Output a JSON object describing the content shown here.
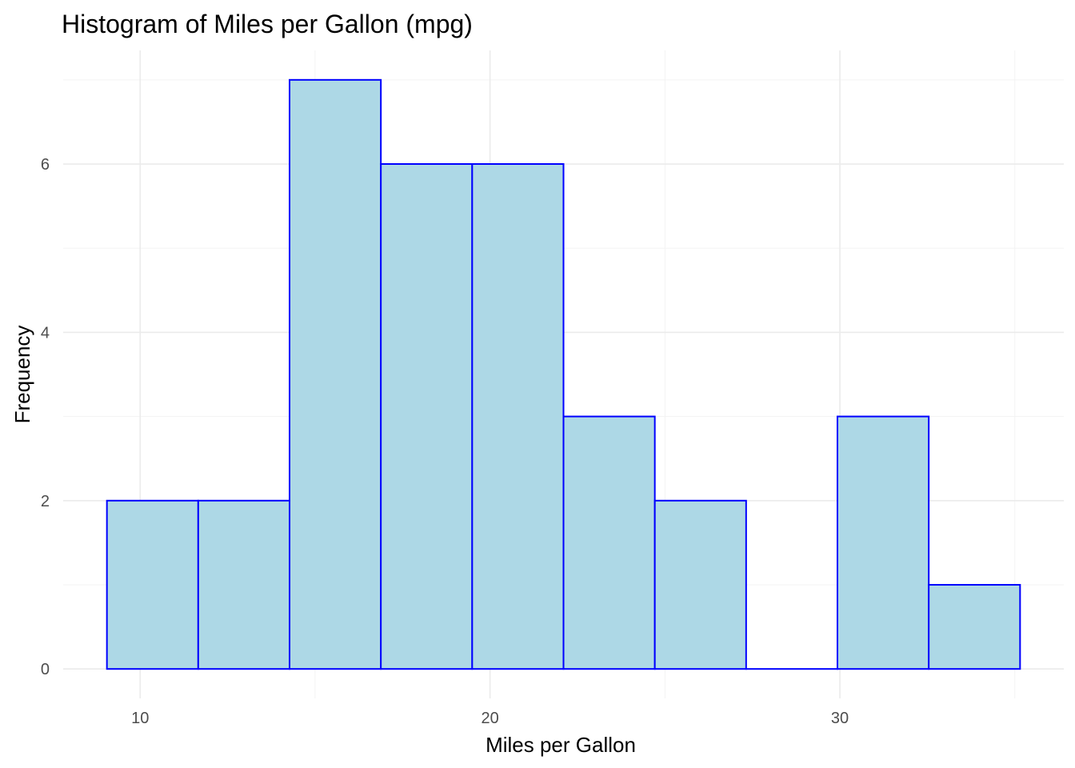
{
  "chart_data": {
    "type": "bar",
    "title": "Histogram of Miles per Gallon (mpg)",
    "xlabel": "Miles per Gallon",
    "ylabel": "Frequency",
    "bins": [
      {
        "x0": 9.05,
        "x1": 11.66,
        "count": 2
      },
      {
        "x0": 11.66,
        "x1": 14.27,
        "count": 2
      },
      {
        "x0": 14.27,
        "x1": 16.88,
        "count": 7
      },
      {
        "x0": 16.88,
        "x1": 19.49,
        "count": 6
      },
      {
        "x0": 19.49,
        "x1": 22.1,
        "count": 6
      },
      {
        "x0": 22.1,
        "x1": 24.71,
        "count": 3
      },
      {
        "x0": 24.71,
        "x1": 27.32,
        "count": 2
      },
      {
        "x0": 27.32,
        "x1": 29.93,
        "count": 0
      },
      {
        "x0": 29.93,
        "x1": 32.54,
        "count": 3
      },
      {
        "x0": 32.54,
        "x1": 35.15,
        "count": 1
      }
    ],
    "x_ticks": [
      10,
      20,
      30
    ],
    "y_ticks": [
      0,
      2,
      4,
      6
    ],
    "xlim": [
      7.8,
      36.4
    ],
    "ylim": [
      -0.35,
      7.35
    ],
    "grid": true,
    "fill_color": "#add8e6",
    "outline_color": "#0000ff"
  }
}
